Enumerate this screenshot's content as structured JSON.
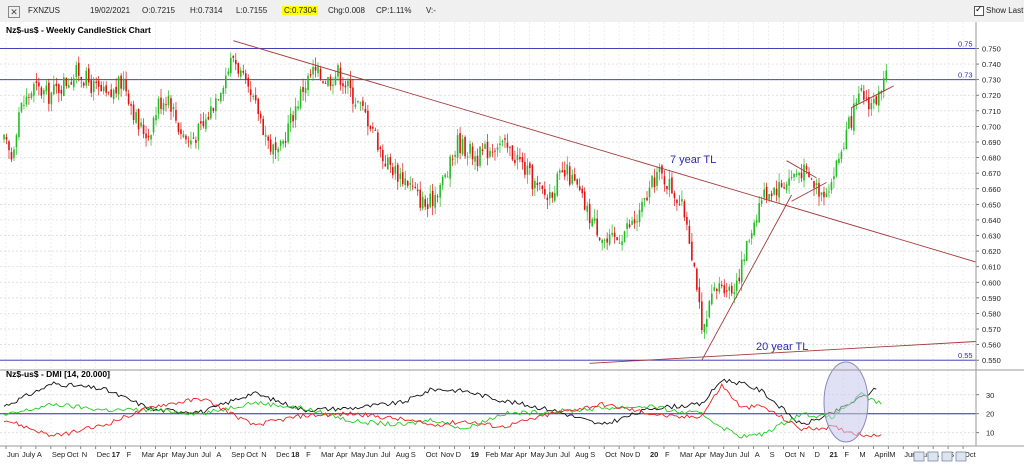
{
  "toolbar": {
    "symbol": "FXNZUS",
    "date": "19/02/2021",
    "open": "O:0.7215",
    "high": "H:0.7314",
    "low": "L:0.7155",
    "close": "C:0.7304",
    "change": "Chg:0.008",
    "change_pct": "CP:1.11%",
    "volume": "V:-",
    "show_last_label": "Show Last"
  },
  "chart_data": [
    {
      "type": "candlestick",
      "title": "Nz$-us$ - Weekly CandleStick Chart",
      "ylim": [
        0.545,
        0.758
      ],
      "y_ticks": [
        "0.750",
        "0.740",
        "0.730",
        "0.720",
        "0.710",
        "0.700",
        "0.690",
        "0.680",
        "0.670",
        "0.660",
        "0.650",
        "0.640",
        "0.630",
        "0.620",
        "0.610",
        "0.600",
        "0.590",
        "0.580",
        "0.570",
        "0.560",
        "0.550"
      ],
      "up_color": "#22bb22",
      "down_color": "#dd1111",
      "horizontal_levels": [
        {
          "value": 0.75,
          "label": "0.75",
          "color": "#2a2ab0"
        },
        {
          "value": 0.73,
          "label": "0.73",
          "color": "#2a2ab0"
        },
        {
          "value": 0.55,
          "label": "0.55",
          "color": "#2a2ab0"
        }
      ],
      "annotations": [
        "7 year TL",
        "20 year TL"
      ],
      "price_path": [
        [
          0,
          0.69
        ],
        [
          3,
          0.68
        ],
        [
          6,
          0.71
        ],
        [
          12,
          0.725
        ],
        [
          18,
          0.72
        ],
        [
          24,
          0.728
        ],
        [
          30,
          0.735
        ],
        [
          36,
          0.725
        ],
        [
          42,
          0.718
        ],
        [
          48,
          0.73
        ],
        [
          54,
          0.7
        ],
        [
          58,
          0.695
        ],
        [
          62,
          0.715
        ],
        [
          66,
          0.72
        ],
        [
          70,
          0.7
        ],
        [
          74,
          0.69
        ],
        [
          80,
          0.7
        ],
        [
          84,
          0.715
        ],
        [
          88,
          0.73
        ],
        [
          92,
          0.745
        ],
        [
          94,
          0.738
        ],
        [
          98,
          0.72
        ],
        [
          102,
          0.71
        ],
        [
          106,
          0.69
        ],
        [
          110,
          0.68
        ],
        [
          114,
          0.7
        ],
        [
          120,
          0.725
        ],
        [
          124,
          0.735
        ],
        [
          130,
          0.73
        ],
        [
          134,
          0.735
        ],
        [
          138,
          0.725
        ],
        [
          142,
          0.715
        ],
        [
          148,
          0.7
        ],
        [
          152,
          0.68
        ],
        [
          158,
          0.67
        ],
        [
          162,
          0.665
        ],
        [
          166,
          0.655
        ],
        [
          170,
          0.648
        ],
        [
          174,
          0.66
        ],
        [
          178,
          0.67
        ],
        [
          182,
          0.69
        ],
        [
          186,
          0.685
        ],
        [
          190,
          0.68
        ],
        [
          194,
          0.685
        ],
        [
          198,
          0.69
        ],
        [
          202,
          0.685
        ],
        [
          206,
          0.68
        ],
        [
          210,
          0.67
        ],
        [
          214,
          0.66
        ],
        [
          218,
          0.655
        ],
        [
          222,
          0.665
        ],
        [
          226,
          0.67
        ],
        [
          230,
          0.66
        ],
        [
          234,
          0.645
        ],
        [
          238,
          0.635
        ],
        [
          242,
          0.625
        ],
        [
          246,
          0.628
        ],
        [
          250,
          0.635
        ],
        [
          254,
          0.64
        ],
        [
          258,
          0.655
        ],
        [
          262,
          0.67
        ],
        [
          266,
          0.665
        ],
        [
          270,
          0.655
        ],
        [
          274,
          0.64
        ],
        [
          278,
          0.6
        ],
        [
          280,
          0.565
        ],
        [
          282,
          0.575
        ],
        [
          284,
          0.59
        ],
        [
          288,
          0.6
        ],
        [
          292,
          0.595
        ],
        [
          296,
          0.61
        ],
        [
          300,
          0.635
        ],
        [
          304,
          0.655
        ],
        [
          308,
          0.66
        ],
        [
          312,
          0.662
        ],
        [
          316,
          0.668
        ],
        [
          320,
          0.672
        ],
        [
          324,
          0.665
        ],
        [
          328,
          0.658
        ],
        [
          332,
          0.665
        ],
        [
          336,
          0.685
        ],
        [
          340,
          0.705
        ],
        [
          344,
          0.72
        ],
        [
          348,
          0.715
        ],
        [
          352,
          0.72
        ],
        [
          354,
          0.73
        ]
      ],
      "trendlines": [
        {
          "name": "7 year TL",
          "from": [
            92,
            0.755
          ],
          "to": [
            390,
            0.613
          ]
        },
        {
          "name": "20 year TL",
          "from": [
            235,
            0.548
          ],
          "to": [
            390,
            0.562
          ]
        },
        {
          "name": "rising",
          "from": [
            280,
            0.55
          ],
          "to": [
            316,
            0.656
          ]
        },
        {
          "name": "channel-up",
          "from": [
            340,
            0.712
          ],
          "to": [
            357,
            0.726
          ]
        },
        {
          "name": "channel-down",
          "from": [
            314,
            0.678
          ],
          "to": [
            326,
            0.667
          ]
        },
        {
          "name": "wedge-low",
          "from": [
            316,
            0.652
          ],
          "to": [
            330,
            0.664
          ]
        }
      ]
    },
    {
      "type": "line",
      "title": "Nz$-us$ - DMI [14, 20.000]",
      "ylim": [
        3,
        42
      ],
      "y_ticks": [
        "30",
        "20",
        "10"
      ],
      "reference_level": 20,
      "series": [
        {
          "color": "#111111",
          "points": [
            [
              0,
              24
            ],
            [
              20,
              36
            ],
            [
              40,
              33
            ],
            [
              60,
              22
            ],
            [
              80,
              21
            ],
            [
              100,
              31
            ],
            [
              120,
              22
            ],
            [
              140,
              23
            ],
            [
              160,
              26
            ],
            [
              172,
              33
            ],
            [
              185,
              32
            ],
            [
              200,
              27
            ],
            [
              220,
              22
            ],
            [
              240,
              14
            ],
            [
              260,
              23
            ],
            [
              270,
              24
            ],
            [
              280,
              25
            ],
            [
              288,
              38
            ],
            [
              296,
              36
            ],
            [
              304,
              32
            ],
            [
              320,
              14
            ],
            [
              332,
              20
            ],
            [
              350,
              33
            ]
          ]
        },
        {
          "color": "#22cc22",
          "points": [
            [
              0,
              19
            ],
            [
              20,
              25
            ],
            [
              40,
              22
            ],
            [
              60,
              22
            ],
            [
              80,
              20
            ],
            [
              100,
              26
            ],
            [
              120,
              23
            ],
            [
              140,
              16
            ],
            [
              160,
              14
            ],
            [
              172,
              17
            ],
            [
              185,
              12
            ],
            [
              200,
              20
            ],
            [
              220,
              21
            ],
            [
              240,
              23
            ],
            [
              260,
              24
            ],
            [
              270,
              21
            ],
            [
              280,
              20
            ],
            [
              288,
              13
            ],
            [
              296,
              8
            ],
            [
              304,
              9
            ],
            [
              320,
              20
            ],
            [
              332,
              18
            ],
            [
              344,
              30
            ],
            [
              352,
              25
            ]
          ]
        },
        {
          "color": "#ee2222",
          "points": [
            [
              0,
              17
            ],
            [
              20,
              8
            ],
            [
              40,
              14
            ],
            [
              60,
              24
            ],
            [
              80,
              28
            ],
            [
              100,
              14
            ],
            [
              120,
              19
            ],
            [
              140,
              20
            ],
            [
              160,
              17
            ],
            [
              172,
              14
            ],
            [
              185,
              16
            ],
            [
              200,
              13
            ],
            [
              220,
              20
            ],
            [
              240,
              25
            ],
            [
              260,
              20
            ],
            [
              270,
              18
            ],
            [
              280,
              19
            ],
            [
              288,
              35
            ],
            [
              296,
              23
            ],
            [
              304,
              24
            ],
            [
              320,
              12
            ],
            [
              332,
              13
            ],
            [
              344,
              9
            ],
            [
              352,
              9
            ]
          ]
        }
      ]
    }
  ],
  "x_axis_labels": [
    "Jun",
    "July",
    "A",
    "Sep",
    "Oct",
    "N",
    "Dec",
    "17",
    "F",
    "Mar",
    "Apr",
    "May",
    "Jun",
    "Jul",
    "A",
    "Sep",
    "Oct",
    "N",
    "Dec",
    "18",
    "F",
    "Mar",
    "Apr",
    "May",
    "Jun",
    "Jul",
    "Aug",
    "S",
    "Oct",
    "Nov",
    "D",
    "19",
    "Feb",
    "Mar",
    "Apr",
    "May",
    "Jun",
    "Jul",
    "Aug",
    "S",
    "Oct",
    "Nov",
    "D",
    "20",
    "F",
    "Mar",
    "Apr",
    "May",
    "Jun",
    "Jul",
    "A",
    "S",
    "Oct",
    "N",
    "D",
    "21",
    "F",
    "M",
    "April",
    "M",
    "Jun",
    "July",
    "A",
    "S",
    "Oct"
  ],
  "x_axis_bold": [
    "17",
    "18",
    "19",
    "20",
    "21"
  ]
}
